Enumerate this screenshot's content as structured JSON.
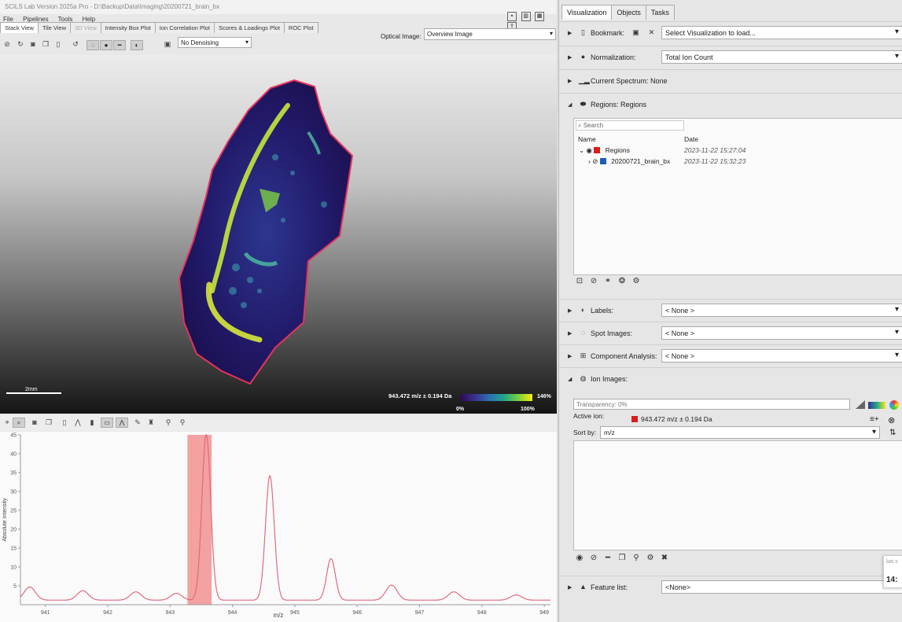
{
  "window": {
    "title": "SCiLS Lab Version 2025a Pro - D:\\Backup\\Data\\Imaging\\20200721_brain_bx"
  },
  "menu": [
    "File",
    "Pipelines",
    "Tools",
    "Help"
  ],
  "view_tabs": [
    "Stack View",
    "Tile View",
    "3D View",
    "Intensity Box Plot",
    "Ion Correlation Plot",
    "Scores & Loadings Plot",
    "ROC Plot"
  ],
  "toolbar": {
    "denoising": "No Denoising"
  },
  "optical_image": {
    "label": "Optical Image:",
    "value": "Overview Image"
  },
  "viewer": {
    "scale_label": "2mm",
    "ion_label": "943.472 m/z ± 0.194 Da",
    "colorbar": {
      "min_label": "0%",
      "max_label": "100%",
      "max_pct": "146%"
    }
  },
  "chart_data": {
    "type": "line",
    "title": "",
    "xlabel": "m/z",
    "ylabel": "Absolute Intensity",
    "xlim": [
      940.6,
      949.1
    ],
    "ylim": [
      0,
      45
    ],
    "x_ticks": [
      941,
      942,
      943,
      944,
      945,
      946,
      947,
      948,
      949
    ],
    "y_ticks": [
      5,
      10,
      15,
      20,
      25,
      30,
      35,
      40,
      45
    ],
    "selected_range": [
      943.278,
      943.666
    ],
    "line_color": "#e06b7d",
    "highlight_color": "#f07a7a",
    "peaks": [
      {
        "mz": 940.75,
        "intensity": 3.5
      },
      {
        "mz": 941.6,
        "intensity": 2.5
      },
      {
        "mz": 942.45,
        "intensity": 2.2
      },
      {
        "mz": 943.1,
        "intensity": 1.8
      },
      {
        "mz": 943.58,
        "intensity": 44
      },
      {
        "mz": 944.6,
        "intensity": 33
      },
      {
        "mz": 945.58,
        "intensity": 11
      },
      {
        "mz": 946.55,
        "intensity": 4
      },
      {
        "mz": 947.55,
        "intensity": 2.2
      },
      {
        "mz": 948.55,
        "intensity": 1.4
      }
    ],
    "baseline": 1.2
  },
  "right": {
    "tabs": [
      "Visualization",
      "Objects",
      "Tasks"
    ],
    "bookmark": {
      "label": "Bookmark:",
      "value": "Select Visualization to load..."
    },
    "normalization": {
      "label": "Normalization:",
      "value": "Total Ion Count"
    },
    "current_spectrum": {
      "label": "Current Spectrum: None"
    },
    "regions": {
      "label": "Regions: Regions",
      "search_placeholder": "Search",
      "col_name": "Name",
      "col_date": "Date",
      "items": [
        {
          "name": "Regions",
          "date": "2023-11-22 15:27:04",
          "color": "#d81e1e"
        },
        {
          "name": "20200721_brain_bx",
          "date": "2023-11-22 15:32:23",
          "color": "#1f5fb5"
        }
      ]
    },
    "labels": {
      "label": "Labels:",
      "value": "< None >"
    },
    "spot_images": {
      "label": "Spot Images:",
      "value": "< None >"
    },
    "component_analysis": {
      "label": "Component Analysis:",
      "value": "< None >"
    },
    "ion_images": {
      "label": "Ion Images:",
      "transparency": "Transparency: 0%",
      "active_ion_label": "Active ion:",
      "active_ion_value": "943.472 m/z ± 0.194 Da",
      "active_ion_color": "#d81e1e",
      "sort_label": "Sort by:",
      "sort_value": "m/z"
    },
    "feature_list": {
      "label": "Feature list:",
      "value": "<None>"
    },
    "clock": {
      "top": "bai s",
      "time": "14:"
    }
  }
}
